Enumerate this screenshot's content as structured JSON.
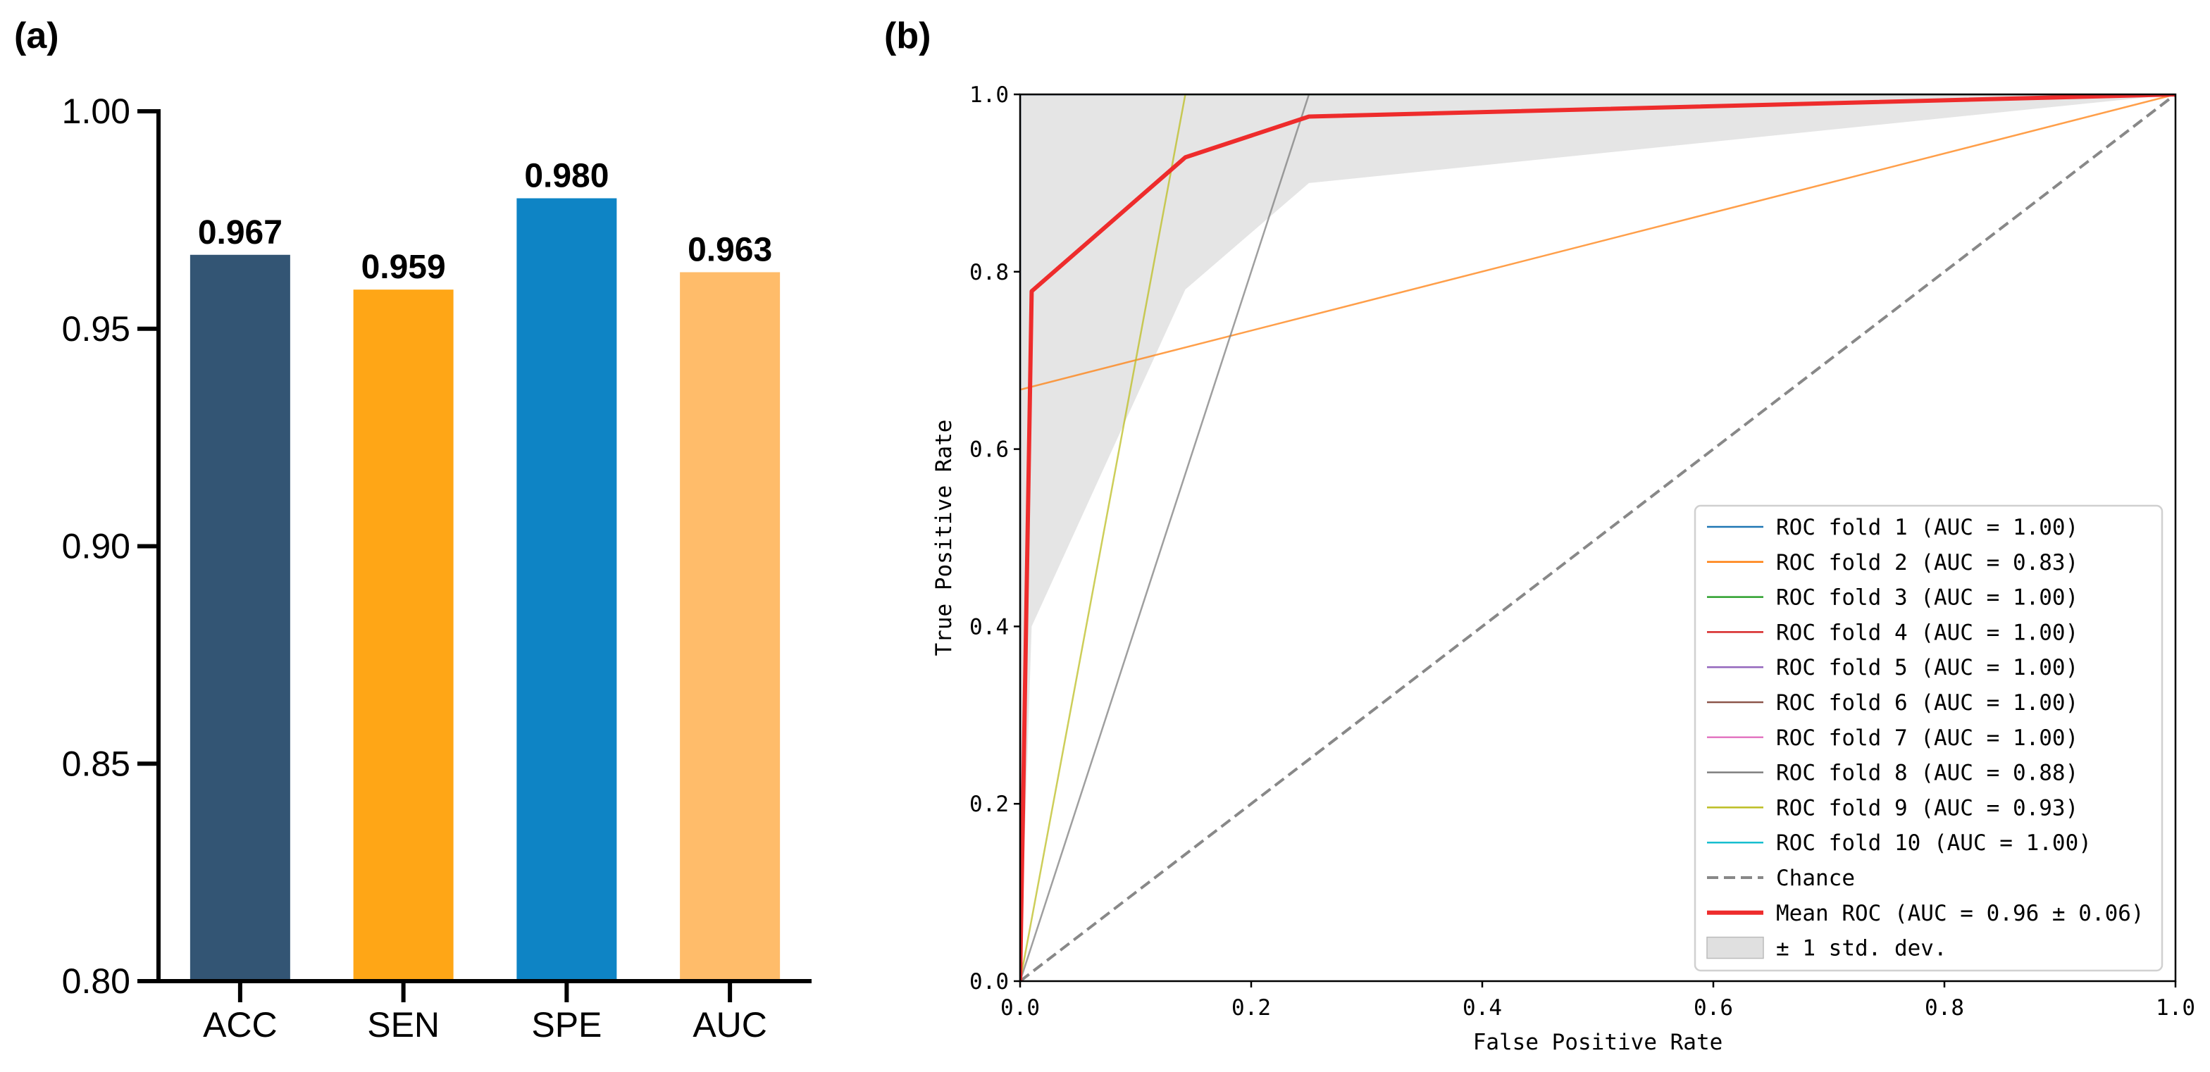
{
  "panel_a": {
    "label": "(a)"
  },
  "panel_b": {
    "label": "(b)"
  },
  "chart_data": [
    {
      "type": "bar",
      "categories": [
        "ACC",
        "SEN",
        "SPE",
        "AUC"
      ],
      "values": [
        0.967,
        0.959,
        0.98,
        0.963
      ],
      "value_labels": [
        "0.967",
        "0.959",
        "0.980",
        "0.963"
      ],
      "colors": [
        "#335574",
        "#FFA616",
        "#0E84C5",
        "#FFBC6A"
      ],
      "ylim": [
        0.8,
        1.0
      ],
      "yticks": [
        "0.80",
        "0.85",
        "0.90",
        "0.95",
        "1.00"
      ],
      "title": "",
      "xlabel": "",
      "ylabel": ""
    },
    {
      "type": "line",
      "xlabel": "False Positive Rate",
      "ylabel": "True Positive Rate",
      "xlim": [
        0,
        1
      ],
      "ylim": [
        0,
        1
      ],
      "xticks": [
        "0.0",
        "0.2",
        "0.4",
        "0.6",
        "0.8",
        "1.0"
      ],
      "yticks": [
        "0.0",
        "0.2",
        "0.4",
        "0.6",
        "0.8",
        "1.0"
      ],
      "legend_position": "lower right",
      "series": [
        {
          "name": "ROC fold 1 (AUC = 1.00)",
          "color": "#1f77b4",
          "x": [
            0,
            0,
            1
          ],
          "y": [
            0,
            1,
            1
          ]
        },
        {
          "name": "ROC fold 2 (AUC = 0.83)",
          "color": "#ff7f0e",
          "x": [
            0,
            0,
            1
          ],
          "y": [
            0,
            0.667,
            1
          ]
        },
        {
          "name": "ROC fold 3 (AUC = 1.00)",
          "color": "#2ca02c",
          "x": [
            0,
            0,
            1
          ],
          "y": [
            0,
            1,
            1
          ]
        },
        {
          "name": "ROC fold 4 (AUC = 1.00)",
          "color": "#d62728",
          "x": [
            0,
            0,
            1
          ],
          "y": [
            0,
            1,
            1
          ]
        },
        {
          "name": "ROC fold 5 (AUC = 1.00)",
          "color": "#9467bd",
          "x": [
            0,
            0,
            1
          ],
          "y": [
            0,
            1,
            1
          ]
        },
        {
          "name": "ROC fold 6 (AUC = 1.00)",
          "color": "#8c564b",
          "x": [
            0,
            0,
            1
          ],
          "y": [
            0,
            1,
            1
          ]
        },
        {
          "name": "ROC fold 7 (AUC = 1.00)",
          "color": "#e377c2",
          "x": [
            0,
            0,
            1
          ],
          "y": [
            0,
            1,
            1
          ]
        },
        {
          "name": "ROC fold 8 (AUC = 0.88)",
          "color": "#7f7f7f",
          "x": [
            0,
            0.25,
            1
          ],
          "y": [
            0,
            1,
            1
          ]
        },
        {
          "name": "ROC fold 9 (AUC = 0.93)",
          "color": "#bcbd22",
          "x": [
            0,
            0.143,
            1
          ],
          "y": [
            0,
            1,
            1
          ]
        },
        {
          "name": "ROC fold 10 (AUC = 1.00)",
          "color": "#17becf",
          "x": [
            0,
            0,
            1
          ],
          "y": [
            0,
            1,
            1
          ]
        },
        {
          "name": "Chance",
          "color": "#888888",
          "dashed": true,
          "x": [
            0,
            1
          ],
          "y": [
            0,
            1
          ]
        },
        {
          "name": "Mean ROC (AUC = 0.96 ± 0.06)",
          "color": "#EE2C2C",
          "x": [
            0,
            0.01,
            0.143,
            0.25,
            1
          ],
          "y": [
            0,
            0.778,
            0.929,
            0.975,
            1
          ]
        }
      ],
      "std_band": {
        "name": "± 1 std. dev.",
        "color": "#cccccc",
        "x": [
          0,
          0.01,
          0.143,
          0.25,
          1
        ],
        "upper": [
          1,
          1,
          1,
          1,
          1
        ],
        "lower": [
          0,
          0.4,
          0.78,
          0.9,
          1
        ]
      }
    }
  ]
}
